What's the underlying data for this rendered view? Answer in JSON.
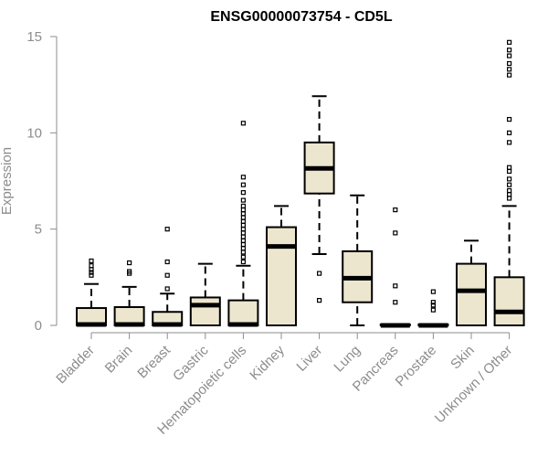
{
  "chart_data": {
    "type": "boxplot",
    "title": "ENSG00000073754 - CD5L",
    "ylabel": "Expression",
    "xlabel": "",
    "ylim": [
      0,
      15
    ],
    "yticks": [
      "0",
      "5",
      "10",
      "15"
    ],
    "colors": {
      "box_fill": "#ede6cf",
      "stroke": "#000000",
      "axis": "#8c8c8c"
    },
    "categories": [
      "Bladder",
      "Brain",
      "Breast",
      "Gastric",
      "Hematopoietic cells",
      "Kidney",
      "Liver",
      "Lung",
      "Pancreas",
      "Prostate",
      "Skin",
      "Unknown / Other"
    ],
    "boxes": [
      {
        "category": "Bladder",
        "whisker_low": 0,
        "q1": 0,
        "median": 0.05,
        "q3": 0.9,
        "whisker_high": 2.15,
        "outliers": [
          2.6,
          2.75,
          2.9,
          3.1,
          3.35
        ]
      },
      {
        "category": "Brain",
        "whisker_low": 0,
        "q1": 0,
        "median": 0.05,
        "q3": 0.95,
        "whisker_high": 2.0,
        "outliers": [
          2.7,
          2.8,
          3.25
        ]
      },
      {
        "category": "Breast",
        "whisker_low": 0,
        "q1": 0,
        "median": 0.05,
        "q3": 0.7,
        "whisker_high": 1.65,
        "outliers": [
          1.9,
          2.6,
          3.3,
          5.0
        ]
      },
      {
        "category": "Gastric",
        "whisker_low": 0,
        "q1": 0,
        "median": 1.05,
        "q3": 1.45,
        "whisker_high": 3.2,
        "outliers": []
      },
      {
        "category": "Hematopoietic cells",
        "whisker_low": 0,
        "q1": 0,
        "median": 0.05,
        "q3": 1.3,
        "whisker_high": 3.1,
        "outliers": [
          3.3,
          3.55,
          3.8,
          4.0,
          4.2,
          4.4,
          4.6,
          4.8,
          5.0,
          5.2,
          5.4,
          5.6,
          5.8,
          6.0,
          6.2,
          6.5,
          6.9,
          7.3,
          7.7,
          10.5
        ]
      },
      {
        "category": "Kidney",
        "whisker_low": 0,
        "q1": 0,
        "median": 4.1,
        "q3": 5.1,
        "whisker_high": 6.2,
        "outliers": []
      },
      {
        "category": "Liver",
        "whisker_low": 3.7,
        "q1": 6.85,
        "median": 8.15,
        "q3": 9.5,
        "whisker_high": 11.9,
        "outliers": [
          1.3,
          2.7
        ]
      },
      {
        "category": "Lung",
        "whisker_low": 0,
        "q1": 1.2,
        "median": 2.45,
        "q3": 3.85,
        "whisker_high": 6.75,
        "outliers": []
      },
      {
        "category": "Pancreas",
        "whisker_low": 0,
        "q1": 0,
        "median": 0,
        "q3": 0.05,
        "whisker_high": 0.05,
        "outliers": [
          1.2,
          2.05,
          4.8,
          6.0
        ]
      },
      {
        "category": "Prostate",
        "whisker_low": 0,
        "q1": 0,
        "median": 0,
        "q3": 0.05,
        "whisker_high": 0.05,
        "outliers": [
          0.8,
          1.05,
          1.2,
          1.75
        ]
      },
      {
        "category": "Skin",
        "whisker_low": 0,
        "q1": 0,
        "median": 1.8,
        "q3": 3.2,
        "whisker_high": 4.4,
        "outliers": []
      },
      {
        "category": "Unknown / Other",
        "whisker_low": 0,
        "q1": 0,
        "median": 0.7,
        "q3": 2.5,
        "whisker_high": 6.2,
        "outliers": [
          6.6,
          6.8,
          7.0,
          7.3,
          7.6,
          8.0,
          8.2,
          9.5,
          10.0,
          10.7,
          13.0,
          13.3,
          13.6,
          14.0,
          14.3,
          14.7
        ]
      }
    ]
  }
}
